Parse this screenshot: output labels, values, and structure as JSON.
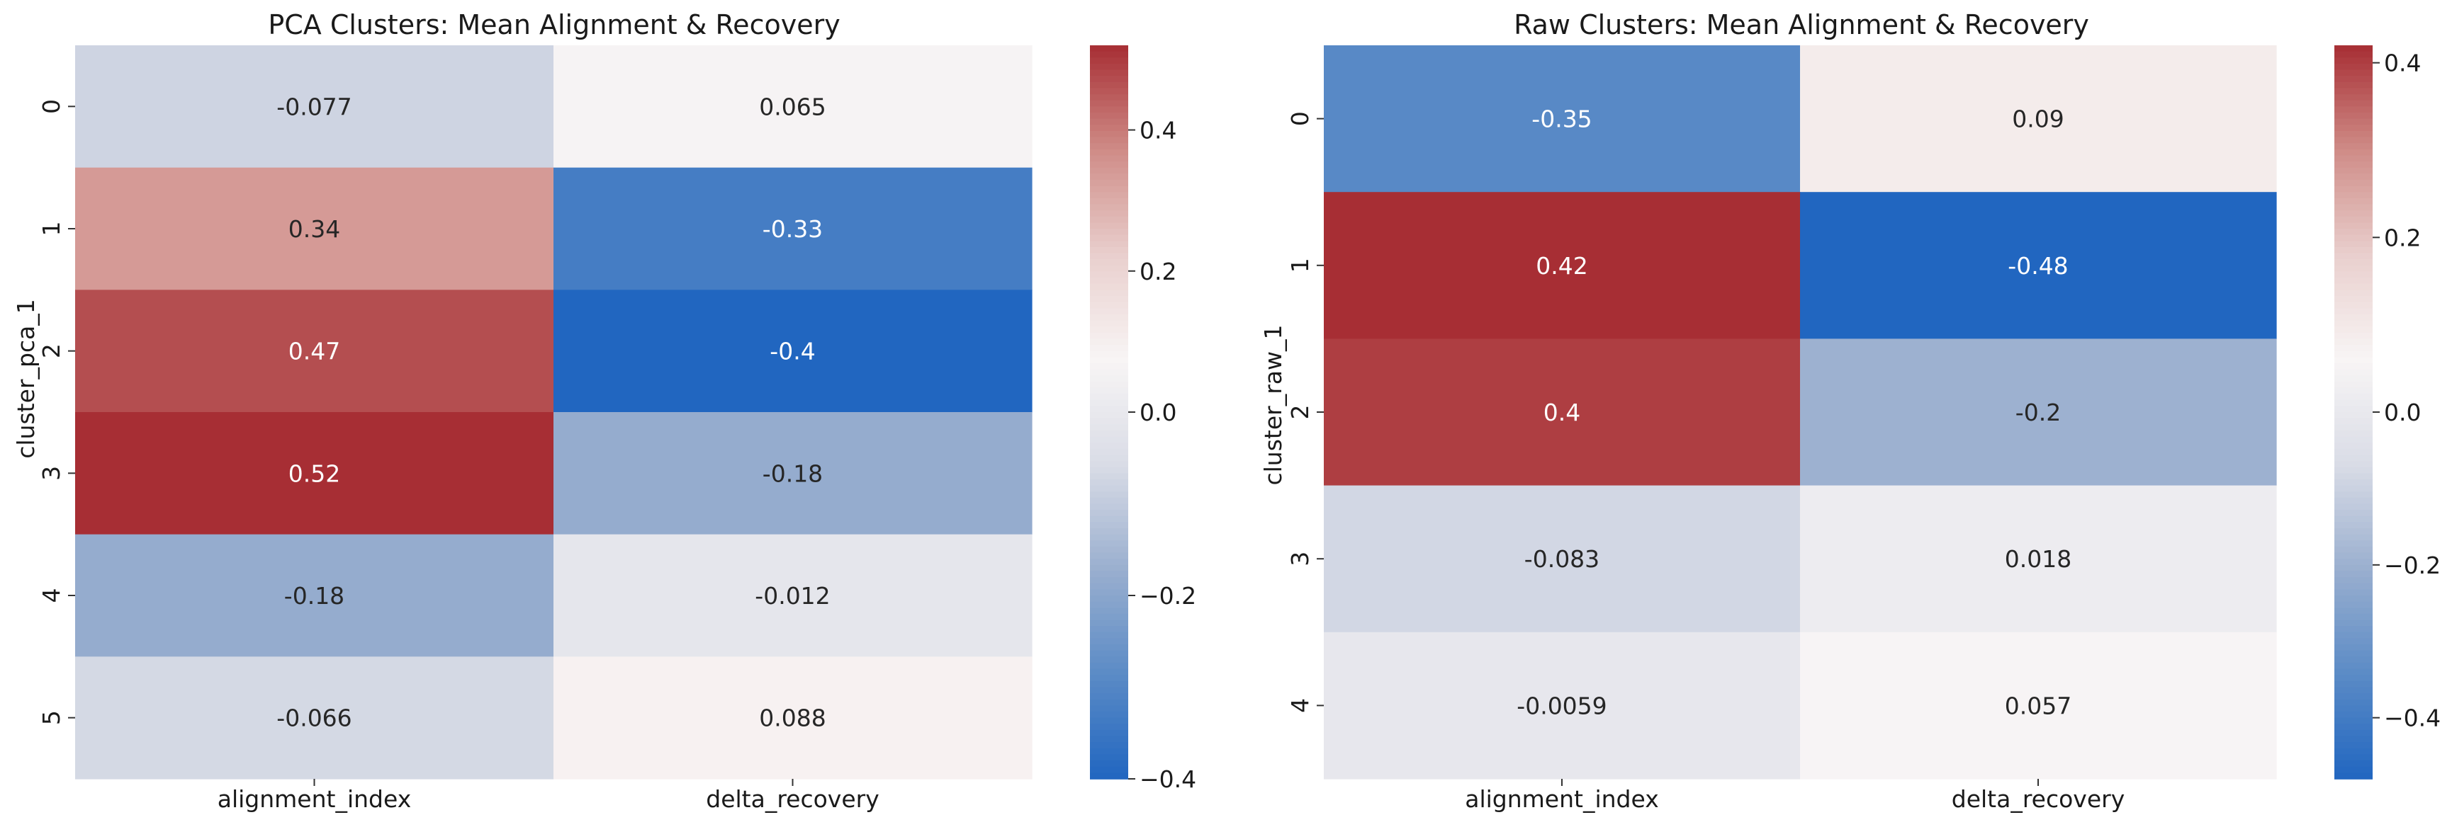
{
  "figure": {
    "background": "#ffffff"
  },
  "colormap": {
    "name": "vlag",
    "stops": [
      "#2166c0",
      "#5b8bc6",
      "#9aafcf",
      "#d9dce6",
      "#f8f5f5",
      "#e9cfcd",
      "#cf8c87",
      "#a72e34"
    ]
  },
  "chart_data": [
    {
      "type": "heatmap",
      "title": "PCA Clusters: Mean Alignment & Recovery",
      "xlabel": "",
      "ylabel": "cluster_pca_1",
      "columns": [
        "alignment_index",
        "delta_recovery"
      ],
      "rows": [
        "0",
        "1",
        "2",
        "3",
        "4",
        "5"
      ],
      "values": [
        [
          -0.077,
          0.065
        ],
        [
          0.34,
          -0.33
        ],
        [
          0.47,
          -0.4
        ],
        [
          0.52,
          -0.18
        ],
        [
          -0.18,
          -0.012
        ],
        [
          -0.066,
          0.088
        ]
      ],
      "labels": [
        [
          "-0.077",
          "0.065"
        ],
        [
          "0.34",
          "-0.33"
        ],
        [
          "0.47",
          "-0.4"
        ],
        [
          "0.52",
          "-0.18"
        ],
        [
          "-0.18",
          "-0.012"
        ],
        [
          "-0.066",
          "0.088"
        ]
      ],
      "vmin": -0.4,
      "vmax": 0.52,
      "center": 0,
      "colorbar_ticks": [
        -0.4,
        -0.2,
        0.0,
        0.2,
        0.4
      ],
      "colorbar_tick_labels": [
        "−0.4",
        "−0.2",
        "0.0",
        "0.2",
        "0.4"
      ]
    },
    {
      "type": "heatmap",
      "title": "Raw Clusters: Mean Alignment & Recovery",
      "xlabel": "",
      "ylabel": "cluster_raw_1",
      "columns": [
        "alignment_index",
        "delta_recovery"
      ],
      "rows": [
        "0",
        "1",
        "2",
        "3",
        "4"
      ],
      "values": [
        [
          -0.35,
          0.09
        ],
        [
          0.42,
          -0.48
        ],
        [
          0.4,
          -0.2
        ],
        [
          -0.083,
          0.018
        ],
        [
          -0.0059,
          0.057
        ]
      ],
      "labels": [
        [
          "-0.35",
          "0.09"
        ],
        [
          "0.42",
          "-0.48"
        ],
        [
          "0.4",
          "-0.2"
        ],
        [
          "-0.083",
          "0.018"
        ],
        [
          "-0.0059",
          "0.057"
        ]
      ],
      "vmin": -0.48,
      "vmax": 0.42,
      "center": 0,
      "colorbar_ticks": [
        -0.4,
        -0.2,
        0.0,
        0.2,
        0.4
      ],
      "colorbar_tick_labels": [
        "−0.4",
        "−0.2",
        "0.0",
        "0.2",
        "0.4"
      ]
    }
  ]
}
